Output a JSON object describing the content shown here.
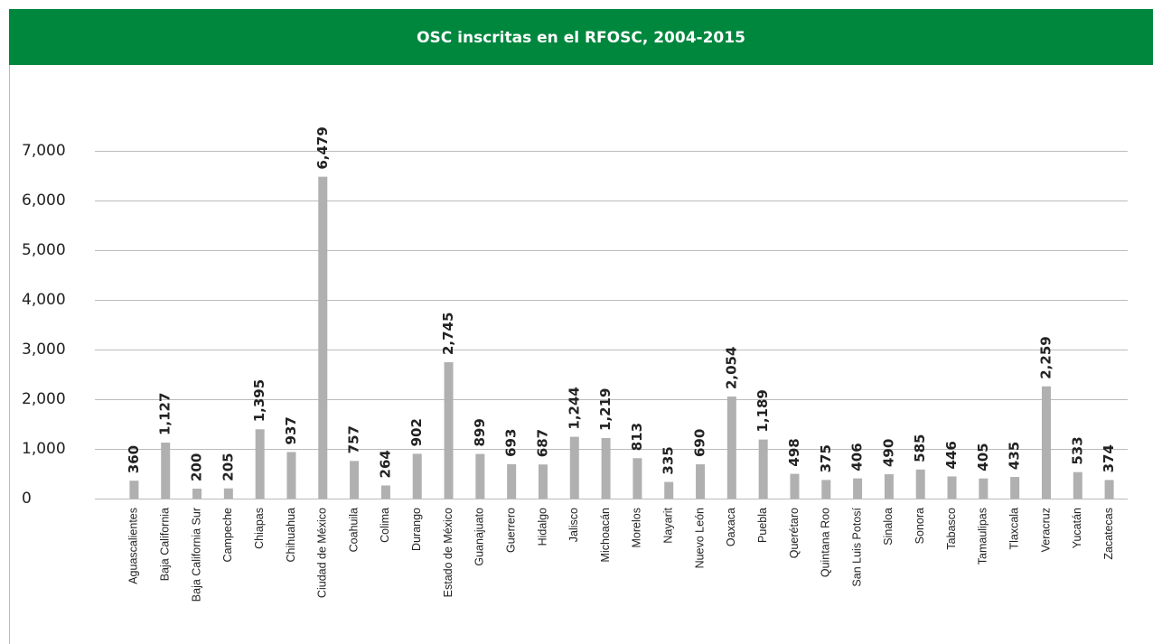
{
  "chart_data": {
    "type": "bar",
    "title": "OSC inscritas en el RFOSC, 2004-2015",
    "categories": [
      "Aguascalientes",
      "Baja California",
      "Baja California Sur",
      "Campeche",
      "Chiapas",
      "Chihuahua",
      "Ciudad de México",
      "Coahuila",
      "Colima",
      "Durango",
      "Estado de México",
      "Guanajuato",
      "Guerrero",
      "Hidalgo",
      "Jalisco",
      "Michoacán",
      "Morelos",
      "Nayarit",
      "Nuevo León",
      "Oaxaca",
      "Puebla",
      "Querétaro",
      "Quintana Roo",
      "San Luis Potosí",
      "Sinaloa",
      "Sonora",
      "Tabasco",
      "Tamaulipas",
      "Tlaxcala",
      "Veracruz",
      "Yucatán",
      "Zacatecas"
    ],
    "values": [
      360,
      1127,
      200,
      205,
      1395,
      937,
      6479,
      757,
      264,
      902,
      2745,
      899,
      693,
      687,
      1244,
      1219,
      813,
      335,
      690,
      2054,
      1189,
      498,
      375,
      406,
      490,
      585,
      446,
      405,
      435,
      2259,
      533,
      374
    ],
    "value_labels": [
      "360",
      "1,127",
      "200",
      "205",
      "1,395",
      "937",
      "6,479",
      "757",
      "264",
      "902",
      "2,745",
      "899",
      "693",
      "687",
      "1,244",
      "1,219",
      "813",
      "335",
      "690",
      "2,054",
      "1,189",
      "498",
      "375",
      "406",
      "490",
      "585",
      "446",
      "405",
      "435",
      "2,259",
      "533",
      "374"
    ],
    "color": "#b0b0b0",
    "ylim": [
      0,
      7000
    ],
    "yticks": [
      0,
      {
        "value": 1000,
        "label": "1,000"
      },
      {
        "value": 2000,
        "label": "2,000"
      },
      {
        "value": 3000,
        "label": "3,000"
      },
      {
        "value": 4000,
        "label": "4,000"
      },
      {
        "value": 5000,
        "label": "5,000"
      },
      {
        "value": 6000,
        "label": "6,000"
      },
      {
        "value": 7000,
        "label": "7,000"
      }
    ],
    "grid": true
  }
}
